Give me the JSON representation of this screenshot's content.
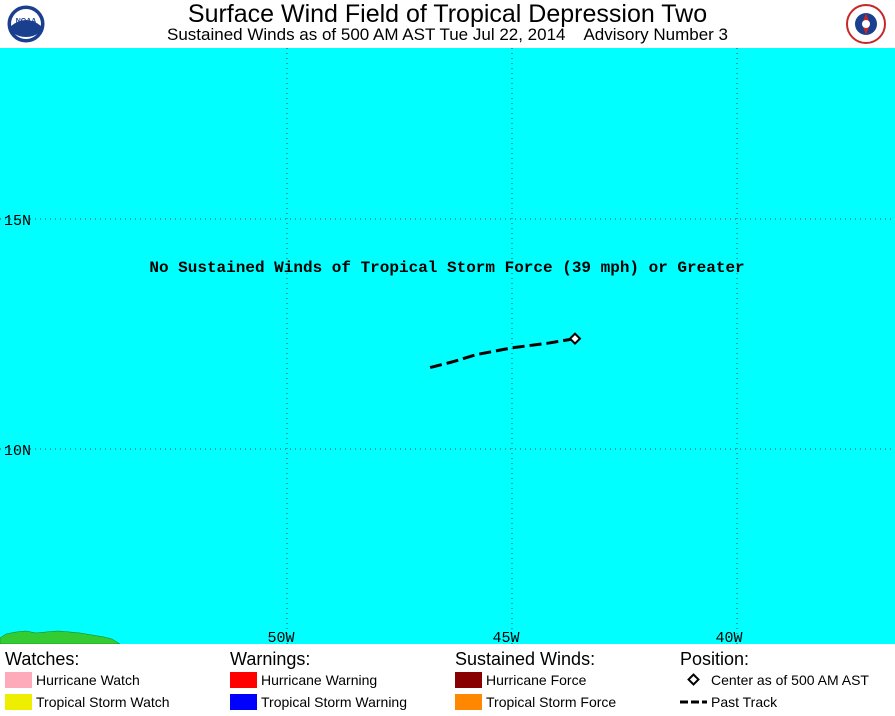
{
  "header": {
    "title": "Surface Wind Field of Tropical Depression Two",
    "subtitle": "Sustained Winds as of 500 AM AST Tue Jul 22, 2014    Advisory Number 3",
    "left_logo": "noaa-logo",
    "right_logo": "nws-logo"
  },
  "map": {
    "ocean_color": "#00FFFF",
    "land_color": "#33CC33",
    "grid_labels": {
      "lat": [
        "15N",
        "10N"
      ],
      "lon": [
        "50W",
        "45W",
        "40W"
      ]
    },
    "message": "No Sustained Winds of Tropical Storm Force (39 mph) or Greater",
    "center": {
      "lat": 12.4,
      "lon": -43.6
    },
    "past_track": [
      {
        "lat": 12.4,
        "lon": -43.6
      },
      {
        "lat": 12.3,
        "lon": -44.2
      },
      {
        "lat": 12.2,
        "lon": -45.0
      },
      {
        "lat": 12.05,
        "lon": -45.8
      },
      {
        "lat": 11.9,
        "lon": -46.3
      },
      {
        "lat": 11.75,
        "lon": -46.9
      }
    ]
  },
  "legend": {
    "watches": {
      "heading": "Watches:",
      "items": [
        {
          "label": "Hurricane Watch",
          "color": "#FFAABB"
        },
        {
          "label": "Tropical Storm Watch",
          "color": "#EEEE00"
        }
      ]
    },
    "warnings": {
      "heading": "Warnings:",
      "items": [
        {
          "label": "Hurricane Warning",
          "color": "#FF0000"
        },
        {
          "label": "Tropical Storm Warning",
          "color": "#0000FF"
        }
      ]
    },
    "winds": {
      "heading": "Sustained Winds:",
      "items": [
        {
          "label": "Hurricane Force",
          "color": "#880000"
        },
        {
          "label": "Tropical Storm Force",
          "color": "#FF8800"
        }
      ]
    },
    "position": {
      "heading": "Position:",
      "items": [
        {
          "label": "Center as of 500 AM AST",
          "icon": "diamond-icon"
        },
        {
          "label": "Past Track",
          "icon": "dashed-line-icon"
        }
      ]
    }
  }
}
